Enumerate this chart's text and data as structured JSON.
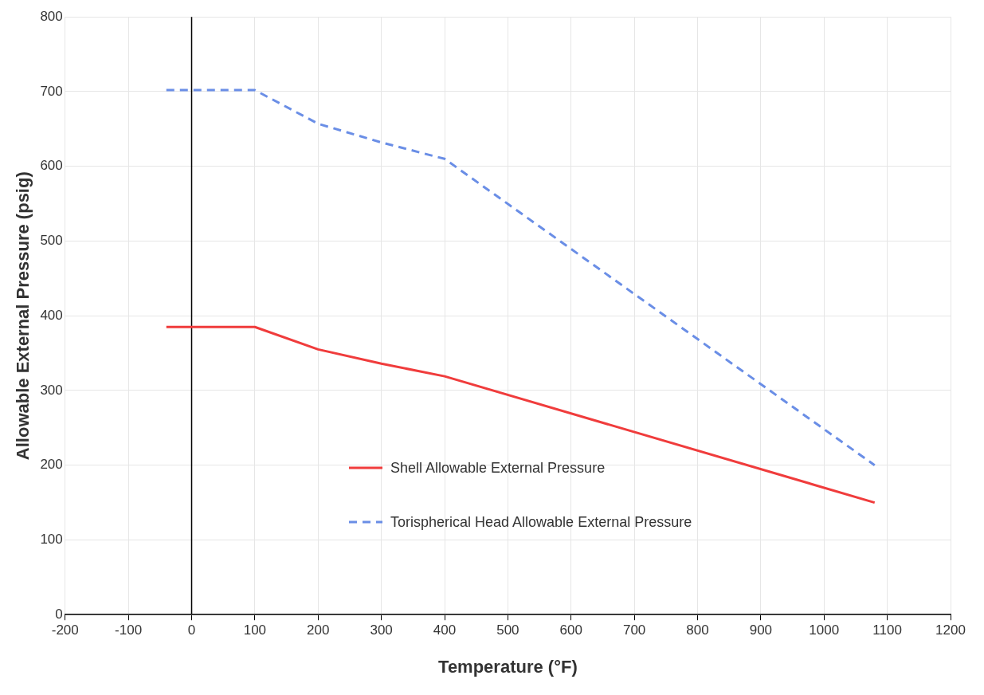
{
  "chart_data": {
    "type": "line",
    "xlabel": "Temperature (°F)",
    "ylabel": "Allowable External Pressure (psig)",
    "xlim": [
      -200,
      1200
    ],
    "xticks": [
      -200,
      -100,
      0,
      100,
      200,
      300,
      400,
      500,
      600,
      700,
      800,
      900,
      1000,
      1100,
      1200
    ],
    "ylim": [
      0,
      800
    ],
    "yticks": [
      0,
      100,
      200,
      300,
      400,
      500,
      600,
      700,
      800
    ],
    "grid": true,
    "legend": "bottom",
    "marker": "none",
    "ref_lines": [
      {
        "axis": "x",
        "value": 0,
        "color": "#000000"
      }
    ],
    "series": [
      {
        "name": "Shell Allowable External Pressure",
        "color": "#f03c3c",
        "line_style": "solid",
        "x": [
          -40,
          100,
          200,
          300,
          400,
          1080
        ],
        "values": [
          385,
          385,
          355,
          336,
          319,
          150
        ]
      },
      {
        "name": "Torispherical Head Allowable External Pressure",
        "color": "#6a8ee6",
        "line_style": "dashed",
        "x": [
          -40,
          100,
          200,
          300,
          400,
          1080
        ],
        "values": [
          702,
          702,
          657,
          632,
          610,
          200
        ]
      }
    ]
  }
}
